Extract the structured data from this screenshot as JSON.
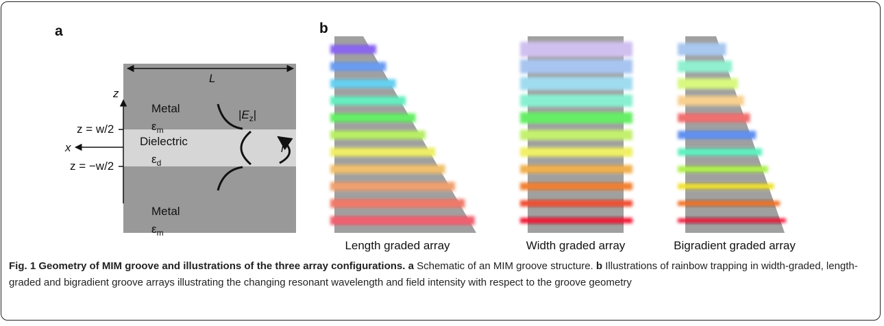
{
  "panel_a": {
    "label": "a",
    "length": "L",
    "z_axis": "z",
    "x_axis": "x",
    "z_top": "z = w/2",
    "z_bottom": "z = −w/2",
    "metal_top": {
      "name": "Metal",
      "symbol": "ε",
      "subscript": "m"
    },
    "dielectric": {
      "name": "Dielectric",
      "symbol": "ε",
      "subscript": "d"
    },
    "metal_bottom": {
      "name": "Metal",
      "symbol": "ε",
      "subscript": "m"
    },
    "field": {
      "open": "|",
      "variable": "E",
      "subscript": "z",
      "close": "|"
    },
    "reflection": "r"
  },
  "panel_b": {
    "label": "b",
    "arrays": [
      "Length graded array",
      "Width graded array",
      "Bigradient graded array"
    ]
  },
  "caption": {
    "figure": "Fig. 1",
    "title": "Geometry of MIM groove and illustrations of the three array configurations.",
    "parts": [
      {
        "label": "a",
        "text": "Schematic of an MIM groove structure."
      },
      {
        "label": "b",
        "text": "Illustrations of rainbow trapping in width-graded, length-graded and bigradient groove arrays illustrating the changing resonant wavelength and field intensity with respect to the groove geometry"
      }
    ]
  }
}
